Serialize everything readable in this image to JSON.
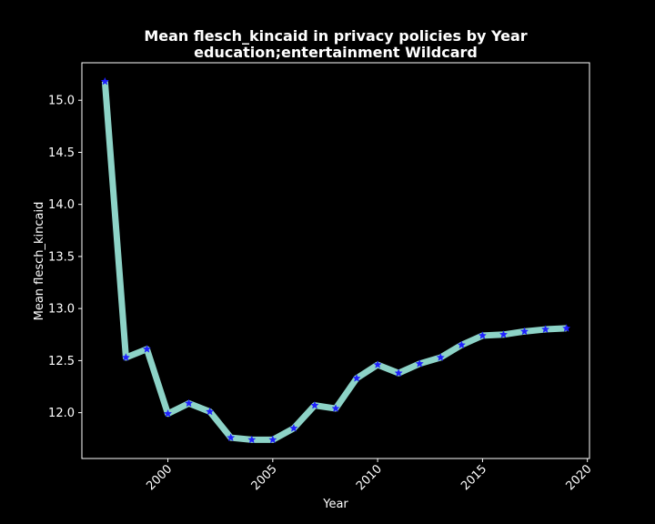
{
  "chart_data": {
    "type": "line",
    "title": "Mean flesch_kincaid in privacy policies by Year",
    "subtitle": "education;entertainment Wildcard",
    "xlabel": "Year",
    "ylabel": "Mean flesch_kincaid",
    "x": [
      1997,
      1998,
      1999,
      2000,
      2001,
      2002,
      2003,
      2004,
      2005,
      2006,
      2007,
      2008,
      2009,
      2010,
      2011,
      2012,
      2013,
      2014,
      2015,
      2016,
      2017,
      2018,
      2019
    ],
    "series": [
      {
        "values": [
          15.18,
          12.53,
          12.61,
          11.99,
          12.09,
          12.01,
          11.76,
          11.74,
          11.74,
          11.85,
          12.07,
          12.04,
          12.33,
          12.46,
          12.38,
          12.47,
          12.53,
          12.65,
          12.74,
          12.75,
          12.78,
          12.8,
          12.81
        ],
        "line_color": "#8dd3c7",
        "marker_color": "#1f1fff",
        "marker": "star"
      }
    ],
    "xticks": [
      2000,
      2005,
      2010,
      2015,
      2020
    ],
    "yticks": [
      12.0,
      12.5,
      13.0,
      13.5,
      14.0,
      14.5,
      15.0
    ],
    "xlim": [
      1995.9,
      2020.1
    ],
    "ylim": [
      11.56,
      15.36
    ],
    "grid": false,
    "background": "#000000",
    "axis_color": "#ffffff"
  }
}
